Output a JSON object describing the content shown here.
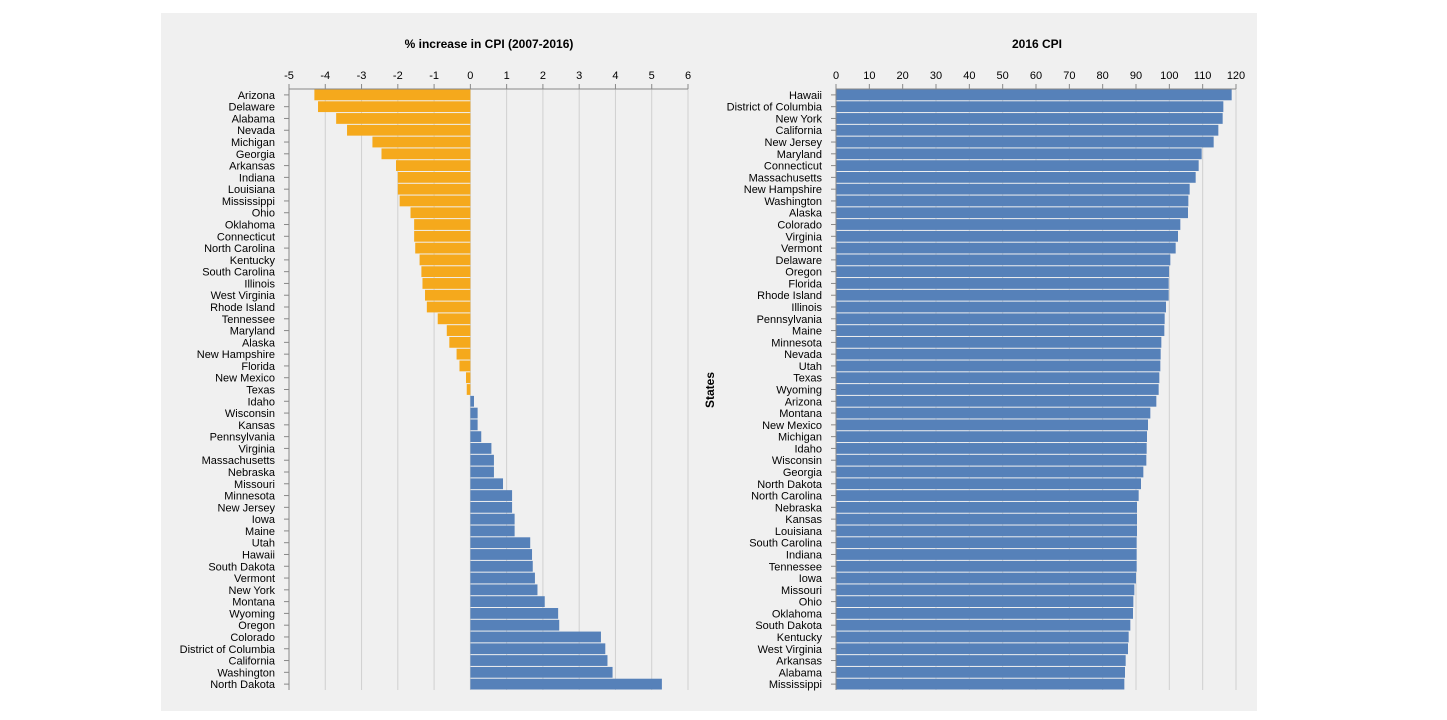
{
  "colors": {
    "negative": "#f5a91c",
    "positive": "#5681b9",
    "grid": "#d0d0d0",
    "panel": "#f0f0f0"
  },
  "chart_data": [
    {
      "type": "bar",
      "orientation": "horizontal",
      "title": "% increase in CPI (2007-2016)",
      "xlim": [
        -5,
        6
      ],
      "xticks": [
        -5,
        -4,
        -3,
        -2,
        -1,
        0,
        1,
        2,
        3,
        4,
        5,
        6
      ],
      "grid": true,
      "categories": [
        "Arizona",
        "Delaware",
        "Alabama",
        "Nevada",
        "Michigan",
        "Georgia",
        "Arkansas",
        "Indiana",
        "Louisiana",
        "Mississippi",
        "Ohio",
        "Oklahoma",
        "Connecticut",
        "North Carolina",
        "Kentucky",
        "South Carolina",
        "Illinois",
        "West Virginia",
        "Rhode Island",
        "Tennessee",
        "Maryland",
        "Alaska",
        "New Hampshire",
        "Florida",
        "New Mexico",
        "Texas",
        "Idaho",
        "Wisconsin",
        "Kansas",
        "Pennsylvania",
        "Virginia",
        "Massachusetts",
        "Nebraska",
        "Missouri",
        "Minnesota",
        "New Jersey",
        "Iowa",
        "Maine",
        "Utah",
        "Hawaii",
        "South Dakota",
        "Vermont",
        "New York",
        "Montana",
        "Wyoming",
        "Oregon",
        "Colorado",
        "District of Columbia",
        "California",
        "Washington",
        "North Dakota"
      ],
      "values": [
        -4.3,
        -4.2,
        -3.7,
        -3.4,
        -2.7,
        -2.45,
        -2.05,
        -2.0,
        -2.0,
        -1.95,
        -1.65,
        -1.55,
        -1.55,
        -1.52,
        -1.4,
        -1.35,
        -1.32,
        -1.25,
        -1.2,
        -0.9,
        -0.65,
        -0.58,
        -0.38,
        -0.3,
        -0.12,
        -0.1,
        0.1,
        0.2,
        0.2,
        0.3,
        0.58,
        0.65,
        0.65,
        0.9,
        1.15,
        1.15,
        1.22,
        1.22,
        1.65,
        1.7,
        1.72,
        1.78,
        1.85,
        2.05,
        2.42,
        2.45,
        3.6,
        3.72,
        3.78,
        3.92,
        5.28
      ]
    },
    {
      "type": "bar",
      "orientation": "horizontal",
      "title": "2016 CPI",
      "ylabel": "States",
      "xlim": [
        0,
        120
      ],
      "xticks": [
        0,
        10,
        20,
        30,
        40,
        50,
        60,
        70,
        80,
        90,
        100,
        110,
        120
      ],
      "grid": true,
      "categories": [
        "Hawaii",
        "District of Columbia",
        "New York",
        "California",
        "New Jersey",
        "Maryland",
        "Connecticut",
        "Massachusetts",
        "New Hampshire",
        "Washington",
        "Alaska",
        "Colorado",
        "Virginia",
        "Vermont",
        "Delaware",
        "Oregon",
        "Florida",
        "Rhode Island",
        "Illinois",
        "Pennsylvania",
        "Maine",
        "Minnesota",
        "Nevada",
        "Utah",
        "Texas",
        "Wyoming",
        "Arizona",
        "Montana",
        "New Mexico",
        "Michigan",
        "Idaho",
        "Wisconsin",
        "Georgia",
        "North Dakota",
        "North Carolina",
        "Nebraska",
        "Kansas",
        "Louisiana",
        "South Carolina",
        "Indiana",
        "Tennessee",
        "Iowa",
        "Missouri",
        "Ohio",
        "Oklahoma",
        "South Dakota",
        "Kentucky",
        "West Virginia",
        "Arkansas",
        "Alabama",
        "Mississippi"
      ],
      "values": [
        118.7,
        116.2,
        116.0,
        114.7,
        113.3,
        109.7,
        108.8,
        107.9,
        106.1,
        105.7,
        105.6,
        103.3,
        102.6,
        101.9,
        100.3,
        99.9,
        99.8,
        99.8,
        99.0,
        98.6,
        98.5,
        97.6,
        97.4,
        97.3,
        97.0,
        96.8,
        96.1,
        94.3,
        93.6,
        93.3,
        93.2,
        93.1,
        92.2,
        91.5,
        90.8,
        90.3,
        90.3,
        90.3,
        90.2,
        90.2,
        90.2,
        90.0,
        89.5,
        89.2,
        89.1,
        88.3,
        87.8,
        87.6,
        86.9,
        86.7,
        86.5
      ]
    }
  ]
}
